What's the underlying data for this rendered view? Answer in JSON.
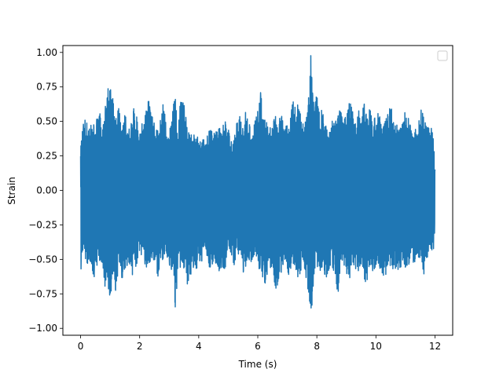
{
  "chart_data": {
    "type": "line",
    "title": "",
    "xlabel": "Time (s)",
    "ylabel": "Strain",
    "xlim": [
      -0.6,
      12.6
    ],
    "ylim": [
      -1.05,
      1.05
    ],
    "xticks": [
      0,
      2,
      4,
      6,
      8,
      10,
      12
    ],
    "xtick_labels": [
      "0",
      "2",
      "4",
      "6",
      "8",
      "10",
      "12"
    ],
    "yticks": [
      1.0,
      0.75,
      0.5,
      0.25,
      0.0,
      -0.25,
      -0.5,
      -0.75,
      -1.0
    ],
    "ytick_labels": [
      "1.00",
      "0.75",
      "0.50",
      "0.25",
      "0.00",
      "−0.25",
      "−0.50",
      "−0.75",
      "−1.00"
    ],
    "grid": false,
    "legend": {
      "position": "top-right",
      "entries": []
    },
    "series": [
      {
        "color": "#1f77b4",
        "x": [
          0.0,
          0.1,
          0.2,
          0.3,
          0.4,
          0.5,
          0.6,
          0.7,
          0.8,
          0.9,
          1.0,
          1.1,
          1.2,
          1.3,
          1.4,
          1.5,
          1.6,
          1.7,
          1.8,
          1.9,
          2.0,
          2.1,
          2.2,
          2.3,
          2.4,
          2.5,
          2.6,
          2.7,
          2.8,
          2.9,
          3.0,
          3.1,
          3.2,
          3.3,
          3.4,
          3.5,
          3.6,
          3.7,
          3.8,
          3.9,
          4.0,
          4.1,
          4.2,
          4.3,
          4.4,
          4.5,
          4.6,
          4.7,
          4.8,
          4.9,
          5.0,
          5.1,
          5.2,
          5.3,
          5.4,
          5.5,
          5.6,
          5.7,
          5.8,
          5.9,
          6.0,
          6.1,
          6.2,
          6.3,
          6.4,
          6.5,
          6.6,
          6.7,
          6.8,
          6.9,
          7.0,
          7.1,
          7.2,
          7.3,
          7.4,
          7.5,
          7.6,
          7.7,
          7.8,
          7.9,
          8.0,
          8.1,
          8.2,
          8.3,
          8.4,
          8.5,
          8.6,
          8.7,
          8.8,
          8.9,
          9.0,
          9.1,
          9.2,
          9.3,
          9.4,
          9.5,
          9.6,
          9.7,
          9.8,
          9.9,
          10.0,
          10.1,
          10.2,
          10.3,
          10.4,
          10.5,
          10.6,
          10.7,
          10.8,
          10.9,
          11.0,
          11.1,
          11.2,
          11.3,
          11.4,
          11.5,
          11.6,
          11.7,
          11.8,
          11.9,
          12.0
        ],
        "upper": [
          0.3,
          0.55,
          0.5,
          0.45,
          0.5,
          0.45,
          0.65,
          0.5,
          0.55,
          0.7,
          0.88,
          0.65,
          0.55,
          0.6,
          0.5,
          0.6,
          0.45,
          0.5,
          0.62,
          0.55,
          0.42,
          0.5,
          0.55,
          0.7,
          0.6,
          0.48,
          0.45,
          0.55,
          0.65,
          0.5,
          0.45,
          0.6,
          0.72,
          0.45,
          0.7,
          0.65,
          0.5,
          0.45,
          0.4,
          0.45,
          0.35,
          0.4,
          0.38,
          0.4,
          0.5,
          0.42,
          0.55,
          0.45,
          0.5,
          0.5,
          0.45,
          0.35,
          0.42,
          0.5,
          0.55,
          0.45,
          0.6,
          0.5,
          0.45,
          0.5,
          0.58,
          0.75,
          0.55,
          0.5,
          0.45,
          0.5,
          0.55,
          0.5,
          0.6,
          0.45,
          0.5,
          0.55,
          0.65,
          0.6,
          0.65,
          0.55,
          0.5,
          0.6,
          1.0,
          0.6,
          0.7,
          0.55,
          0.6,
          0.5,
          0.45,
          0.6,
          0.5,
          0.55,
          0.6,
          0.5,
          0.55,
          0.65,
          0.6,
          0.5,
          0.6,
          0.55,
          0.65,
          0.55,
          0.6,
          0.5,
          0.55,
          0.6,
          0.45,
          0.5,
          0.55,
          0.65,
          0.5,
          0.55,
          0.45,
          0.5,
          0.6,
          0.55,
          0.45,
          0.5,
          0.4,
          0.6,
          0.55,
          0.5,
          0.45,
          0.5,
          0.2
        ],
        "lower": [
          -0.65,
          -0.45,
          -0.55,
          -0.5,
          -0.6,
          -0.65,
          -0.5,
          -0.55,
          -0.75,
          -0.6,
          -0.91,
          -0.6,
          -0.75,
          -0.55,
          -0.65,
          -0.6,
          -0.55,
          -0.65,
          -0.6,
          -0.55,
          -0.45,
          -0.5,
          -0.55,
          -0.6,
          -0.5,
          -0.55,
          -0.65,
          -0.55,
          -0.5,
          -0.45,
          -0.55,
          -0.6,
          -0.88,
          -0.6,
          -0.55,
          -0.6,
          -0.7,
          -0.65,
          -0.55,
          -0.6,
          -0.5,
          -0.55,
          -0.45,
          -0.5,
          -0.6,
          -0.5,
          -0.55,
          -0.6,
          -0.55,
          -0.6,
          -0.45,
          -0.5,
          -0.55,
          -0.45,
          -0.5,
          -0.6,
          -0.55,
          -0.5,
          -0.55,
          -0.45,
          -0.55,
          -0.6,
          -0.65,
          -0.7,
          -0.6,
          -0.55,
          -0.78,
          -0.65,
          -0.6,
          -0.55,
          -0.6,
          -0.65,
          -0.55,
          -0.6,
          -0.65,
          -0.55,
          -0.6,
          -0.75,
          -0.93,
          -0.65,
          -0.55,
          -0.6,
          -0.55,
          -0.65,
          -0.6,
          -0.55,
          -0.6,
          -0.78,
          -0.6,
          -0.55,
          -0.6,
          -0.65,
          -0.55,
          -0.6,
          -0.6,
          -0.55,
          -0.65,
          -0.7,
          -0.55,
          -0.6,
          -0.6,
          -0.55,
          -0.6,
          -0.65,
          -0.55,
          -0.6,
          -0.6,
          -0.55,
          -0.6,
          -0.5,
          -0.6,
          -0.55,
          -0.5,
          -0.55,
          -0.45,
          -0.55,
          -0.65,
          -0.5,
          -0.5,
          -0.45,
          -0.4
        ]
      }
    ]
  }
}
